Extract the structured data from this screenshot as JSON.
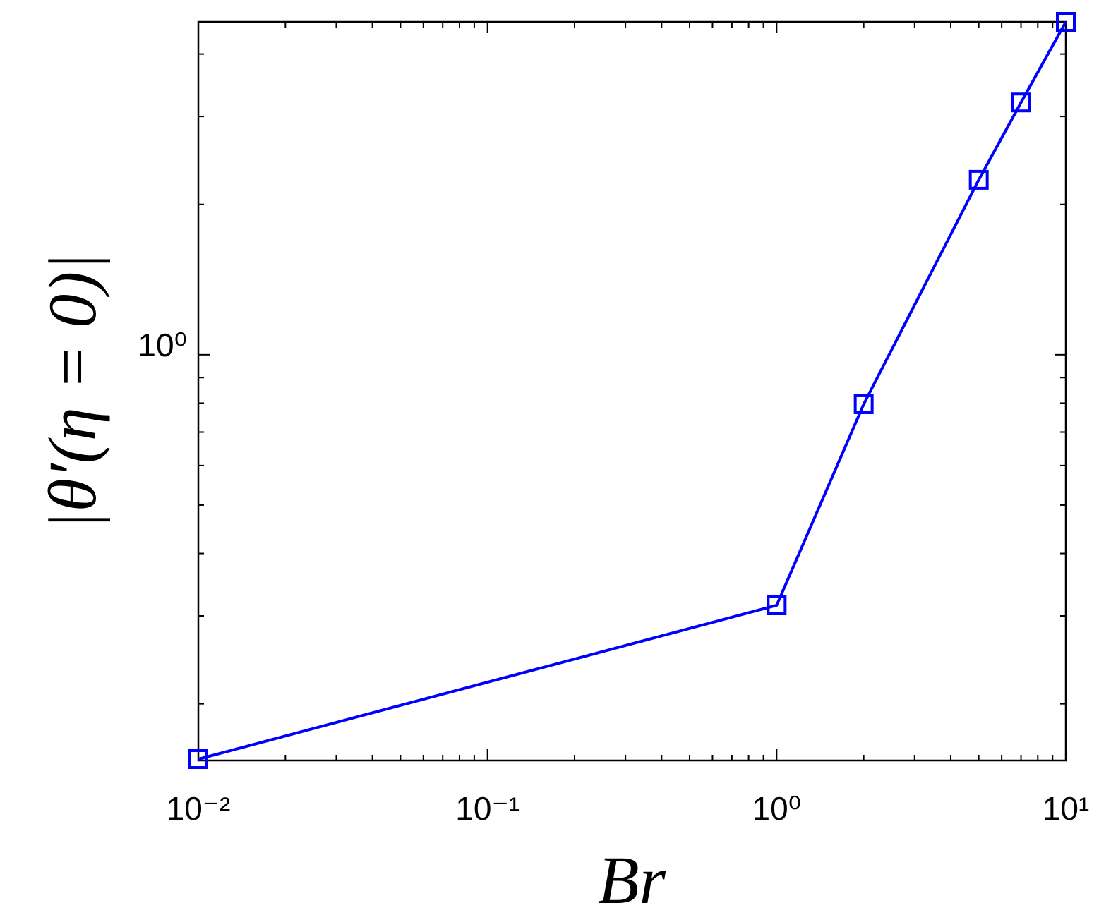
{
  "chart_data": {
    "type": "line",
    "xlabel": "Br",
    "ylabel": "|θ′(η = 0)|",
    "x": [
      0.01,
      1,
      2,
      5,
      7,
      10
    ],
    "series": [
      {
        "name": "|θ′(η = 0)|",
        "color": "#0000ff",
        "values": [
          0.155,
          0.315,
          0.796,
          2.24,
          3.2,
          4.64
        ]
      }
    ],
    "marker": "square",
    "xscale": "log",
    "yscale": "log",
    "xlim": [
      0.01,
      10
    ],
    "ylim": [
      0.154,
      4.64
    ],
    "xticks": [
      {
        "value": 0.01,
        "label": "10⁻²"
      },
      {
        "value": 0.1,
        "label": "10⁻¹"
      },
      {
        "value": 1,
        "label": "10⁰"
      },
      {
        "value": 10,
        "label": "10¹"
      }
    ],
    "yticks": [
      {
        "value": 1,
        "label": "10⁰"
      }
    ],
    "xminorticks": [
      0.02,
      0.03,
      0.04,
      0.05,
      0.06,
      0.07,
      0.08,
      0.09,
      0.2,
      0.3,
      0.4,
      0.5,
      0.6,
      0.7,
      0.8,
      0.9,
      2,
      3,
      4,
      5,
      6,
      7,
      8,
      9
    ],
    "yminorticks": [
      0.2,
      0.3,
      0.4,
      0.5,
      0.6,
      0.7,
      0.8,
      0.9,
      2,
      3,
      4
    ],
    "grid": false
  }
}
